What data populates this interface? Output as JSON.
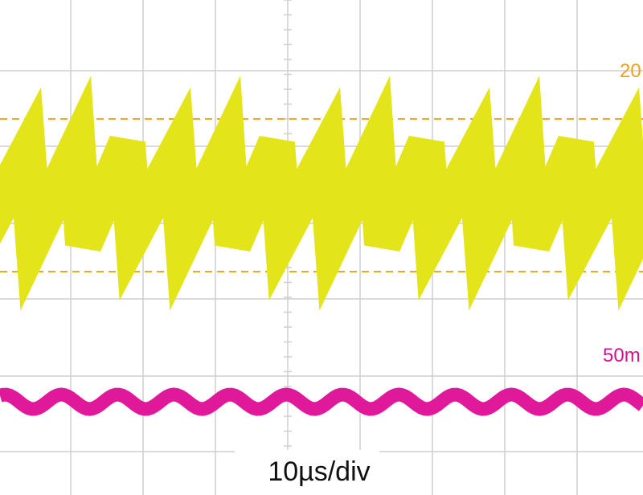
{
  "channel_labels": {
    "ch1": "20",
    "ch2": "50m"
  },
  "timebase": "10µs/div"
}
